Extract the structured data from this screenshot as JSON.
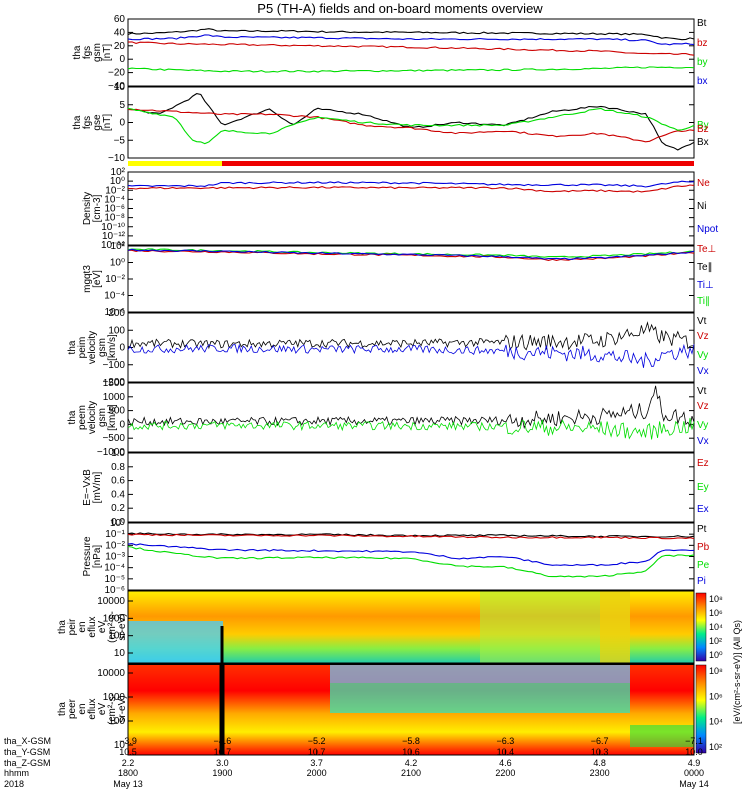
{
  "title": "P5 (TH-A) fields and on-board moments overview",
  "colors": {
    "black": "#000000",
    "red": "#cc0000",
    "green": "#00dd00",
    "blue": "#0000dd",
    "yellow": "#ffff00"
  },
  "chart_data": [
    {
      "type": "line",
      "id": "fgs_gsm",
      "ylabel": [
        "tha",
        "fgs",
        "gsm",
        "[nT]"
      ],
      "ylim": [
        -40,
        60
      ],
      "yticks": [
        "60",
        "40",
        "20",
        "0",
        "−20",
        "−40"
      ],
      "legend": [
        "Bt",
        "bz",
        "by",
        "bx"
      ],
      "series": [
        {
          "name": "Bt",
          "color": "#000000",
          "x": [
            1800,
            1820,
            1840,
            1850,
            1900,
            1950,
            2000,
            2100,
            2200,
            2300,
            2330,
            2340,
            2350,
            2400
          ],
          "y": [
            38,
            39,
            42,
            45,
            42,
            42,
            41,
            40,
            39,
            38,
            37,
            32,
            30,
            31
          ]
        },
        {
          "name": "bz",
          "color": "#cc0000",
          "x": [
            1800,
            1830,
            1900,
            2000,
            2100,
            2200,
            2300,
            2330,
            2400
          ],
          "y": [
            25,
            23,
            22,
            20,
            18,
            15,
            12,
            8,
            7
          ]
        },
        {
          "name": "by",
          "color": "#00dd00",
          "x": [
            1800,
            1830,
            1900,
            2000,
            2100,
            2200,
            2300,
            2330,
            2400
          ],
          "y": [
            -14,
            -16,
            -18,
            -18,
            -17,
            -16,
            -14,
            -12,
            -12
          ]
        },
        {
          "name": "bx",
          "color": "#0000dd",
          "x": [
            1800,
            1830,
            1850,
            1900,
            2000,
            2100,
            2200,
            2300,
            2330,
            2340,
            2400
          ],
          "y": [
            30,
            31,
            36,
            33,
            32,
            30,
            30,
            30,
            28,
            22,
            23
          ]
        }
      ]
    },
    {
      "type": "line",
      "id": "fgs_gse",
      "ylabel": [
        "tha",
        "fgs",
        "gse",
        "[nT]"
      ],
      "ylim": [
        -13,
        13
      ],
      "yticks": [
        "10",
        "5",
        "0",
        "−5",
        "−10"
      ],
      "legend": [
        "By",
        "Bz",
        "Bx"
      ],
      "series": [
        {
          "name": "Bx",
          "color": "#000000",
          "x": [
            1800,
            1820,
            1840,
            1845,
            1850,
            1900,
            1930,
            1945,
            2000,
            2030,
            2100,
            2130,
            2200,
            2230,
            2300,
            2330,
            2340,
            2350,
            2400
          ],
          "y": [
            5,
            3,
            9,
            11,
            7,
            -1,
            5,
            -1,
            5,
            3,
            -2,
            0,
            -1,
            4,
            6,
            3,
            -8,
            -10,
            -7
          ]
        },
        {
          "name": "Bz",
          "color": "#cc0000",
          "x": [
            1800,
            1830,
            1900,
            1930,
            2000,
            2030,
            2100,
            2130,
            2200,
            2230,
            2300,
            2330,
            2350,
            2400
          ],
          "y": [
            5,
            4,
            3,
            3,
            2,
            -1,
            -2,
            -4,
            -3,
            -5,
            -4,
            -7,
            -3,
            -3
          ]
        },
        {
          "name": "By",
          "color": "#00dd00",
          "x": [
            1800,
            1830,
            1840,
            1850,
            1900,
            1930,
            2000,
            2030,
            2100,
            2200,
            2230,
            2300,
            2330,
            2350,
            2400
          ],
          "y": [
            5,
            2,
            -6,
            -8,
            -3,
            -4,
            2,
            0,
            -1,
            -1,
            2,
            5,
            2,
            -3,
            -1
          ]
        }
      ]
    },
    {
      "type": "line",
      "id": "density",
      "ylabel": [
        "Density",
        "[cm-3]"
      ],
      "log": true,
      "ylim": [
        -14,
        4
      ],
      "yticks": [
        "10²",
        "10⁰",
        "10⁻²",
        "10⁻⁴",
        "10⁻⁶",
        "10⁻⁸",
        "10⁻¹⁰",
        "10⁻¹²",
        "10⁻¹⁴"
      ],
      "legend": [
        "Ne",
        "Ni",
        "Npot"
      ],
      "series": [
        {
          "name": "Npot",
          "color": "#0000dd",
          "x": [
            1800,
            1850,
            1900,
            2000,
            2100,
            2200,
            2300,
            2330,
            2350,
            2400
          ],
          "y": [
            0.5,
            0.6,
            1.3,
            1.4,
            1.3,
            0.9,
            0.8,
            0.5,
            1.5,
            1.6
          ]
        },
        {
          "name": "Ne",
          "color": "#cc0000",
          "x": [
            1800,
            1900,
            2000,
            2100,
            2200,
            2230,
            2300,
            2330,
            2350,
            2400
          ],
          "y": [
            0.0,
            0.1,
            0.2,
            0.1,
            0.1,
            -0.8,
            -0.6,
            -0.9,
            0.5,
            0.7
          ]
        }
      ]
    },
    {
      "type": "line",
      "id": "temperature",
      "ylabel": [
        "mgqt3",
        "[eV]"
      ],
      "log": true,
      "ylim": [
        -7,
        3
      ],
      "yticks": [
        "10²",
        "10⁰",
        "10⁻²",
        "10⁻⁴",
        "10⁻⁶"
      ],
      "legend": [
        "Te⊥",
        "Te∥",
        "Ti⊥",
        "Ti∥"
      ],
      "series": [
        {
          "name": "Ti⊥",
          "color": "#00dd00",
          "x": [
            1800,
            1900,
            2000,
            2100,
            2200,
            2230,
            2300,
            2330,
            2400
          ],
          "y": [
            2.5,
            2.3,
            2.0,
            1.8,
            1.6,
            1.3,
            1.5,
            1.8,
            2.2
          ]
        },
        {
          "name": "Te⊥",
          "color": "#cc0000",
          "x": [
            1800,
            1900,
            2000,
            2100,
            2200,
            2230,
            2300,
            2330,
            2400
          ],
          "y": [
            2.3,
            2.1,
            1.8,
            1.6,
            1.3,
            0.9,
            1.1,
            1.5,
            2.0
          ]
        },
        {
          "name": "Te∥",
          "color": "#0000dd",
          "x": [
            1800,
            1900,
            2000,
            2100,
            2200,
            2230,
            2300,
            2330,
            2400
          ],
          "y": [
            2.4,
            2.2,
            1.9,
            1.7,
            1.4,
            1.0,
            1.2,
            1.6,
            2.1
          ]
        }
      ]
    },
    {
      "type": "line",
      "id": "peim_velocity",
      "ylabel": [
        "tha",
        "peim",
        "velocity",
        "gsm",
        "[km/s]"
      ],
      "ylim": [
        -200,
        200
      ],
      "yticks": [
        "200",
        "100",
        "0",
        "−100",
        "−200"
      ],
      "legend": [
        "Vt",
        "Vz",
        "Vy",
        "Vx"
      ],
      "series": [
        {
          "name": "Vt",
          "color": "#000000",
          "x": [
            1800,
            1900,
            2000,
            2100,
            2200,
            2300,
            2330,
            2340,
            2400
          ],
          "y": [
            25,
            20,
            25,
            25,
            30,
            40,
            100,
            60,
            30
          ]
        },
        {
          "name": "Vx",
          "color": "#0000dd",
          "x": [
            1800,
            1900,
            2000,
            2100,
            2200,
            2300,
            2330,
            2340,
            2400
          ],
          "y": [
            -10,
            -5,
            -10,
            -10,
            -20,
            -40,
            -80,
            -40,
            -10
          ]
        }
      ]
    },
    {
      "type": "line",
      "id": "peem_velocity",
      "ylabel": [
        "tha",
        "peem",
        "velocity",
        "gsm",
        "[km/s]"
      ],
      "ylim": [
        -1000,
        1500
      ],
      "yticks": [
        "1500",
        "1000",
        "500",
        "0",
        "−500",
        "−1000"
      ],
      "legend": [
        "Vt",
        "Vz",
        "Vy",
        "Vx"
      ],
      "series": [
        {
          "name": "Vt",
          "color": "#000000",
          "x": [
            1800,
            1900,
            2000,
            2100,
            2200,
            2300,
            2330,
            2335,
            2340,
            2400
          ],
          "y": [
            100,
            100,
            120,
            120,
            150,
            300,
            500,
            1300,
            400,
            150
          ]
        },
        {
          "name": "Vy",
          "color": "#00dd00",
          "x": [
            1800,
            1900,
            2000,
            2100,
            2200,
            2300,
            2330,
            2340,
            2400
          ],
          "y": [
            -50,
            -30,
            -50,
            -50,
            -80,
            -150,
            -300,
            -150,
            -50
          ]
        }
      ]
    },
    {
      "type": "line",
      "id": "efield",
      "ylabel": [
        "E=−VxB",
        "[mV/m]"
      ],
      "ylim": [
        0,
        1
      ],
      "yticks": [
        "1.0",
        "0.8",
        "0.6",
        "0.4",
        "0.2",
        "0.0"
      ],
      "legend": [
        "Ez",
        "Ey",
        "Ex"
      ],
      "series": []
    },
    {
      "type": "line",
      "id": "pressure",
      "ylabel": [
        "Pressure",
        "[nPa]"
      ],
      "log": true,
      "ylim": [
        -6,
        1
      ],
      "yticks": [
        "10⁰",
        "10⁻¹",
        "10⁻²",
        "10⁻³",
        "10⁻⁴",
        "10⁻⁵",
        "10⁻⁶"
      ],
      "legend": [
        "Pt",
        "Pb",
        "Pe",
        "Pi"
      ],
      "series": [
        {
          "name": "Pt",
          "color": "#000000",
          "x": [
            1800,
            1900,
            2000,
            2100,
            2200,
            2300,
            2400
          ],
          "y": [
            -0.1,
            -0.2,
            -0.2,
            -0.3,
            -0.3,
            -0.4,
            -0.4
          ]
        },
        {
          "name": "Pb",
          "color": "#cc0000",
          "x": [
            1800,
            1900,
            2000,
            2100,
            2200,
            2300,
            2400
          ],
          "y": [
            -0.2,
            -0.3,
            -0.3,
            -0.4,
            -0.5,
            -0.5,
            -0.6
          ]
        },
        {
          "name": "Pi",
          "color": "#0000dd",
          "x": [
            1800,
            1830,
            1900,
            2000,
            2100,
            2130,
            2200,
            2230,
            2300,
            2330,
            2340,
            2400
          ],
          "y": [
            -1.2,
            -1.5,
            -1.8,
            -1.9,
            -2.0,
            -2.7,
            -2.5,
            -3.4,
            -3.4,
            -3.0,
            -1.8,
            -1.8
          ]
        },
        {
          "name": "Pe",
          "color": "#00dd00",
          "x": [
            1800,
            1830,
            1900,
            2000,
            2100,
            2130,
            2200,
            2230,
            2300,
            2330,
            2340,
            2400
          ],
          "y": [
            -1.5,
            -2.2,
            -2.7,
            -2.6,
            -2.7,
            -3.5,
            -3.6,
            -4.6,
            -4.6,
            -4.0,
            -2.4,
            -2.4
          ]
        }
      ]
    },
    {
      "type": "heatmap",
      "id": "peir_en_eflux",
      "ylabel": [
        "tha",
        "peir",
        "en",
        "eflux",
        "eV",
        "(cm²-s-",
        "sr-eV)"
      ],
      "yticks": [
        "10000",
        "1000",
        "100",
        "10"
      ],
      "colorbar_ticks": [
        "10⁸",
        "10⁶",
        "10⁴",
        "10²",
        "10⁰"
      ]
    },
    {
      "type": "heatmap",
      "id": "peer_en_eflux",
      "ylabel": [
        "tha",
        "peer",
        "en",
        "eflux",
        "eV",
        "(cm²-s-",
        "sr-eV)"
      ],
      "yticks": [
        "10000",
        "1000",
        "100",
        "10"
      ],
      "colorbar_ticks": [
        "10⁸",
        "10⁶",
        "10⁴",
        "10²"
      ]
    }
  ],
  "colorbar_label": "[eV/(cm²-s-sr-eV)] (All Qs)",
  "x_axis": {
    "times": [
      1800,
      1900,
      2000,
      2100,
      2200,
      2300,
      2400
    ],
    "row_labels": [
      "tha_X-GSM",
      "tha_Y-GSM",
      "tha_Z-GSM",
      "hhmm",
      "2018"
    ],
    "rows": [
      [
        "−3.9",
        "−4.6",
        "−5.2",
        "−5.8",
        "−6.3",
        "−6.7",
        "−7.1"
      ],
      [
        "10.5",
        "10.7",
        "10.7",
        "10.6",
        "10.4",
        "10.3",
        "10.0"
      ],
      [
        "2.2",
        "3.0",
        "3.7",
        "4.2",
        "4.6",
        "4.8",
        "4.9"
      ],
      [
        "1800",
        "1900",
        "2000",
        "2100",
        "2200",
        "2300",
        "0000"
      ]
    ],
    "date_left": "May 13",
    "date_right": "May 14"
  }
}
